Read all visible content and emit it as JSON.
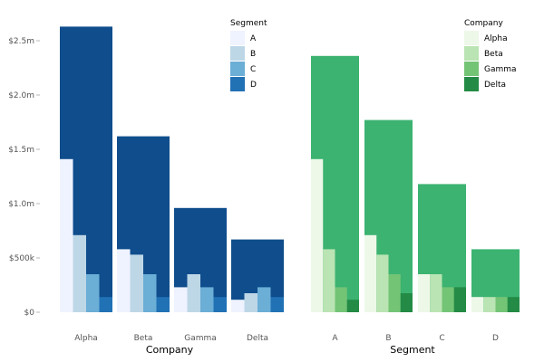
{
  "chart_data": [
    {
      "type": "bar",
      "layout": "overlaid",
      "xlabel": "Company",
      "ylabel": "",
      "ylim": [
        0,
        2750000
      ],
      "yticks": [
        {
          "value": 0,
          "label": "$0"
        },
        {
          "value": 500000,
          "label": "$500k"
        },
        {
          "value": 1000000,
          "label": "$1.0m"
        },
        {
          "value": 1500000,
          "label": "$1.5m"
        },
        {
          "value": 2000000,
          "label": "$2.0m"
        },
        {
          "value": 2500000,
          "label": "$2.5m"
        }
      ],
      "grid": false,
      "total_color": "#0f4d8c",
      "categories": [
        "Alpha",
        "Beta",
        "Gamma",
        "Delta"
      ],
      "totals": [
        2630000,
        1620000,
        960000,
        670000
      ],
      "legend": {
        "title": "Segment",
        "placement": "top-right"
      },
      "series": [
        {
          "name": "A",
          "color": "#eff3ff",
          "values": [
            1410000,
            580000,
            230000,
            115000
          ]
        },
        {
          "name": "B",
          "color": "#bdd7e7",
          "values": [
            710000,
            530000,
            350000,
            175000
          ]
        },
        {
          "name": "C",
          "color": "#6baed6",
          "values": [
            350000,
            350000,
            230000,
            230000
          ]
        },
        {
          "name": "D",
          "color": "#2171b5",
          "values": [
            140000,
            140000,
            140000,
            140000
          ]
        }
      ]
    },
    {
      "type": "bar",
      "layout": "overlaid",
      "xlabel": "Segment",
      "ylabel": "",
      "ylim": [
        0,
        2750000
      ],
      "grid": false,
      "total_color": "#3cb371",
      "categories": [
        "A",
        "B",
        "C",
        "D"
      ],
      "totals": [
        2360000,
        1770000,
        1180000,
        580000
      ],
      "legend": {
        "title": "Company",
        "placement": "top-right"
      },
      "series": [
        {
          "name": "Alpha",
          "color": "#edf8e9",
          "values": [
            1410000,
            710000,
            350000,
            140000
          ]
        },
        {
          "name": "Beta",
          "color": "#bae4b3",
          "values": [
            580000,
            530000,
            350000,
            140000
          ]
        },
        {
          "name": "Gamma",
          "color": "#74c476",
          "values": [
            230000,
            350000,
            230000,
            140000
          ]
        },
        {
          "name": "Delta",
          "color": "#238b45",
          "values": [
            115000,
            175000,
            230000,
            140000
          ]
        }
      ]
    }
  ]
}
